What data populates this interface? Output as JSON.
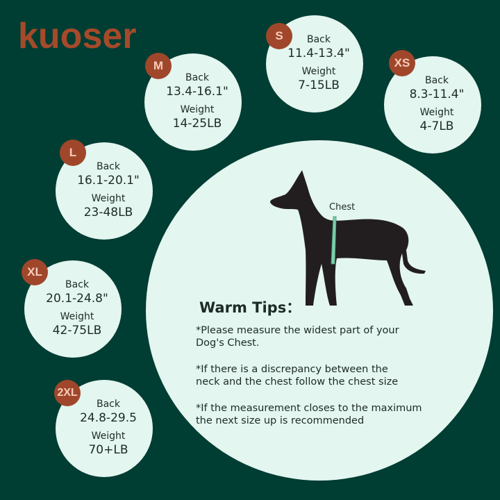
{
  "brand": {
    "logo_text": "kuoser",
    "color": "#a54a2a"
  },
  "colors": {
    "background": "#003d33",
    "circle": "#e3f6ef",
    "badge": "#a0472b",
    "badge_text": "#f7cdbb"
  },
  "sizes": [
    {
      "size": "S",
      "back_label": "Back",
      "back": "11.4-13.4\"",
      "weight_label": "Weight",
      "weight": "7-15LB"
    },
    {
      "size": "XS",
      "back_label": "Back",
      "back": "8.3-11.4\"",
      "weight_label": "Weight",
      "weight": "4-7LB"
    },
    {
      "size": "M",
      "back_label": "Back",
      "back": "13.4-16.1\"",
      "weight_label": "Weight",
      "weight": "14-25LB"
    },
    {
      "size": "L",
      "back_label": "Back",
      "back": "16.1-20.1\"",
      "weight_label": "Weight",
      "weight": "23-48LB"
    },
    {
      "size": "XL",
      "back_label": "Back",
      "back": "20.1-24.8\"",
      "weight_label": "Weight",
      "weight": "42-75LB"
    },
    {
      "size": "2XL",
      "back_label": "Back",
      "back": "24.8-29.5",
      "weight_label": "Weight",
      "weight": "70+LB"
    }
  ],
  "diagram": {
    "chest_label": "Chest",
    "icon": "dog-silhouette-icon"
  },
  "tips": {
    "title": "Warm Tips：",
    "items": [
      "*Please measure the widest part of your\n  Dog's Chest.",
      "*If there is a discrepancy between the\n  neck and the chest follow the chest size",
      "*If the measurement closes to the maximum\n  the next size up is recommended"
    ]
  }
}
